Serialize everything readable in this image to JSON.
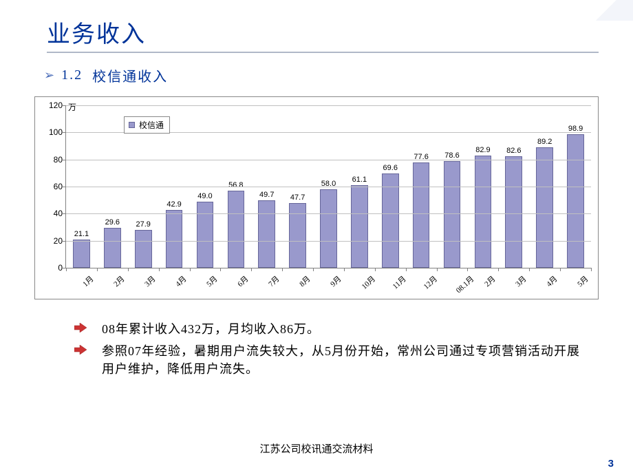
{
  "title": "业务收入",
  "subtitle_number": "1.2",
  "subtitle_text": "校信通收入",
  "colors": {
    "title_color": "#003399",
    "bullet_triangle": "#4a6cb8",
    "arrow_fill": "#cc3333",
    "bar_fill": "#9999cc",
    "bar_border": "#666699",
    "grid": "#c0c0c0",
    "axis": "#808080"
  },
  "chart": {
    "type": "bar",
    "y_unit": "万",
    "ylim": [
      0,
      120
    ],
    "ytick_step": 20,
    "yticks": [
      0,
      20,
      40,
      60,
      80,
      100,
      120
    ],
    "legend_label": "校信通",
    "bar_width_ratio": 0.55,
    "categories": [
      "1月",
      "2月",
      "3月",
      "4月",
      "5月",
      "6月",
      "7月",
      "8月",
      "9月",
      "10月",
      "11月",
      "12月",
      "08.1月",
      "2月",
      "3月",
      "4月",
      "5月"
    ],
    "values": [
      21.1,
      29.6,
      27.9,
      42.9,
      49.0,
      56.8,
      49.7,
      47.7,
      58.0,
      61.1,
      69.6,
      77.6,
      78.6,
      82.9,
      82.6,
      89.2,
      98.9
    ],
    "value_labels": [
      "21.1",
      "29.6",
      "27.9",
      "42.9",
      "49.0",
      "56.8",
      "49.7",
      "47.7",
      "58.0",
      "61.1",
      "69.6",
      "77.6",
      "78.6",
      "82.9",
      "82.6",
      "89.2",
      "98.9"
    ]
  },
  "bullets": [
    "08年累计收入432万，月均收入86万。",
    "参照07年经验，暑期用户流失较大，从5月份开始，常州公司通过专项营销活动开展用户维护，降低用户流失。"
  ],
  "footer": "江苏公司校讯通交流材料",
  "page_number": "3"
}
